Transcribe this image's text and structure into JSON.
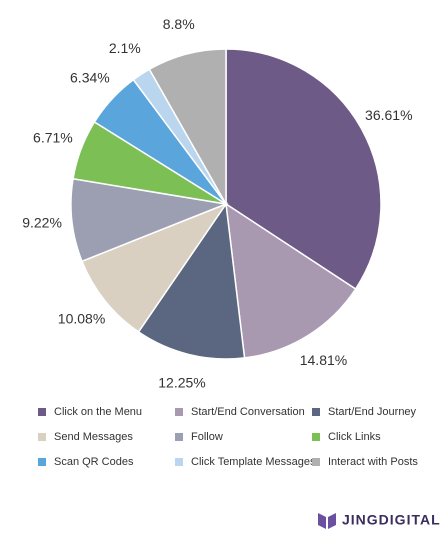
{
  "chart_data": {
    "type": "pie",
    "categories": [
      "Click on the Menu",
      "Start/End Conversation",
      "Start/End Journey",
      "Send Messages",
      "Follow",
      "Click Links",
      "Scan QR Codes",
      "Click Template Messages",
      "Interact with Posts"
    ],
    "values": [
      36.61,
      14.81,
      12.25,
      10.08,
      9.22,
      6.71,
      6.34,
      2.1,
      8.8
    ],
    "value_labels": [
      "36.61%",
      "14.81%",
      "12.25%",
      "10.08%",
      "9.22%",
      "6.71%",
      "6.34%",
      "2.1%",
      "8.8%"
    ],
    "colors": [
      "#6e5a87",
      "#a898b0",
      "#5b6781",
      "#d9d0c2",
      "#9c9fb2",
      "#7cbf55",
      "#5aa6dc",
      "#b9d6ee",
      "#b0b0b0"
    ],
    "legend": "bottom"
  },
  "brand": "JINGDIGITAL"
}
